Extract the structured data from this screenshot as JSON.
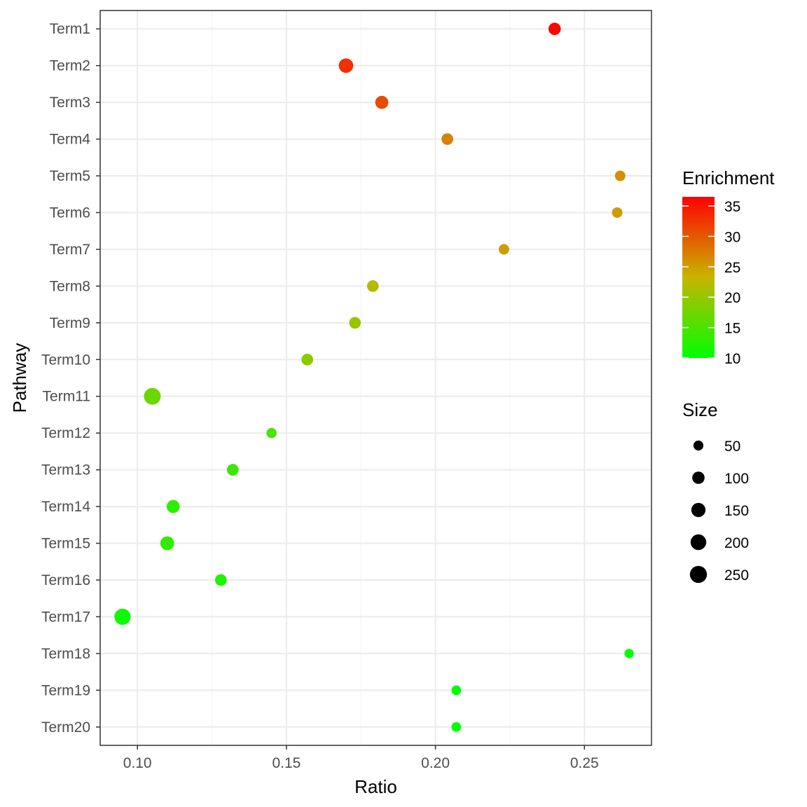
{
  "chart_data": {
    "type": "scatter",
    "xlabel": "Ratio",
    "ylabel": "Pathway",
    "xlim": [
      0.0875,
      0.2725
    ],
    "x_ticks": [
      "0.10",
      "0.15",
      "0.20",
      "0.25"
    ],
    "x_tick_values": [
      0.1,
      0.15,
      0.2,
      0.25
    ],
    "grid": true,
    "categories": [
      "Term1",
      "Term2",
      "Term3",
      "Term4",
      "Term5",
      "Term6",
      "Term7",
      "Term8",
      "Term9",
      "Term10",
      "Term11",
      "Term12",
      "Term13",
      "Term14",
      "Term15",
      "Term16",
      "Term17",
      "Term18",
      "Term19",
      "Term20"
    ],
    "points": [
      {
        "term": "Term1",
        "ratio": 0.24,
        "enrichment": 36,
        "size": 100
      },
      {
        "term": "Term2",
        "ratio": 0.17,
        "enrichment": 33,
        "size": 160
      },
      {
        "term": "Term3",
        "ratio": 0.182,
        "enrichment": 31,
        "size": 120
      },
      {
        "term": "Term4",
        "ratio": 0.204,
        "enrichment": 27,
        "size": 85
      },
      {
        "term": "Term5",
        "ratio": 0.262,
        "enrichment": 26,
        "size": 60
      },
      {
        "term": "Term6",
        "ratio": 0.261,
        "enrichment": 25,
        "size": 60
      },
      {
        "term": "Term7",
        "ratio": 0.223,
        "enrichment": 25,
        "size": 60
      },
      {
        "term": "Term8",
        "ratio": 0.179,
        "enrichment": 22,
        "size": 85
      },
      {
        "term": "Term9",
        "ratio": 0.173,
        "enrichment": 20,
        "size": 85
      },
      {
        "term": "Term10",
        "ratio": 0.157,
        "enrichment": 19,
        "size": 85
      },
      {
        "term": "Term11",
        "ratio": 0.105,
        "enrichment": 17,
        "size": 240
      },
      {
        "term": "Term12",
        "ratio": 0.145,
        "enrichment": 15,
        "size": 55
      },
      {
        "term": "Term13",
        "ratio": 0.132,
        "enrichment": 14,
        "size": 85
      },
      {
        "term": "Term14",
        "ratio": 0.112,
        "enrichment": 13,
        "size": 120
      },
      {
        "term": "Term15",
        "ratio": 0.11,
        "enrichment": 13,
        "size": 140
      },
      {
        "term": "Term16",
        "ratio": 0.128,
        "enrichment": 12,
        "size": 85
      },
      {
        "term": "Term17",
        "ratio": 0.095,
        "enrichment": 11,
        "size": 220
      },
      {
        "term": "Term18",
        "ratio": 0.265,
        "enrichment": 10,
        "size": 40
      },
      {
        "term": "Term19",
        "ratio": 0.207,
        "enrichment": 10,
        "size": 45
      },
      {
        "term": "Term20",
        "ratio": 0.207,
        "enrichment": 10,
        "size": 45
      }
    ],
    "color_legend": {
      "title": "Enrichment",
      "low_color": "#00ff00",
      "mid_color": "#c8b400",
      "high_color": "#ff0000",
      "min": 10,
      "max": 36.5,
      "ticks": [
        "10",
        "15",
        "20",
        "25",
        "30",
        "35"
      ],
      "tick_values": [
        10,
        15,
        20,
        25,
        30,
        35
      ]
    },
    "size_legend": {
      "title": "Size",
      "labels": [
        "50",
        "100",
        "150",
        "200",
        "250"
      ],
      "values": [
        50,
        100,
        150,
        200,
        250
      ]
    }
  }
}
